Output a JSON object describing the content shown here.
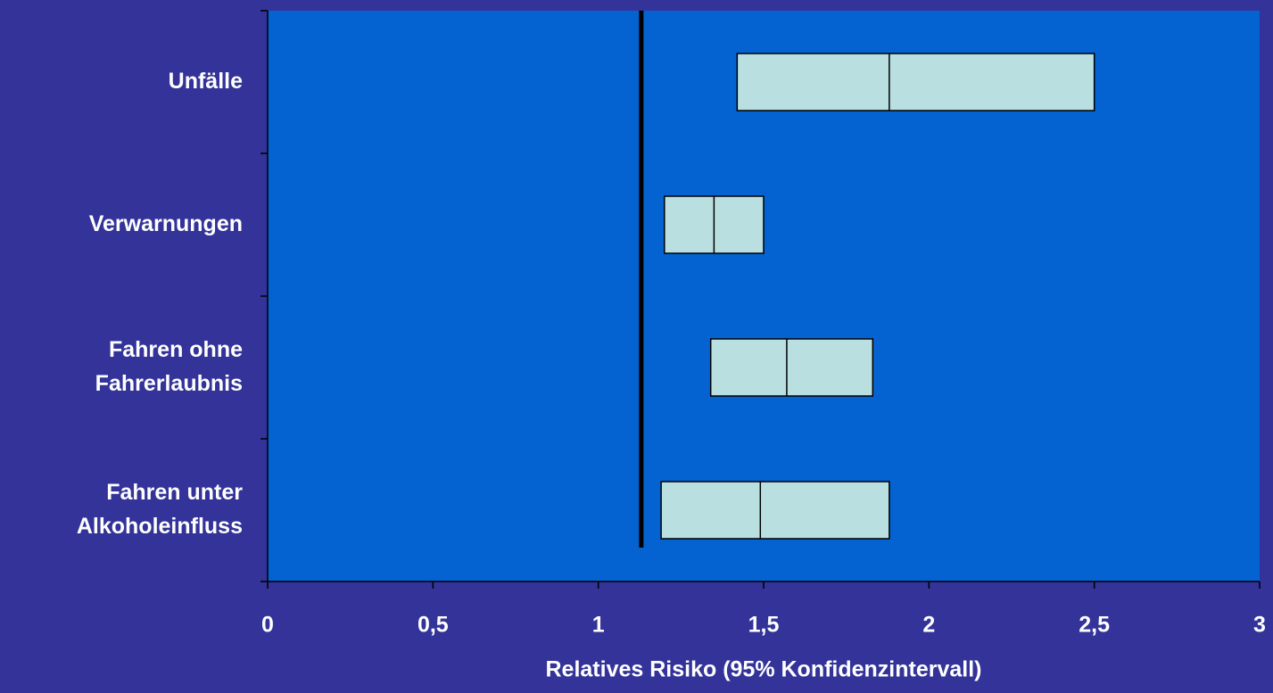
{
  "chart_data": {
    "type": "range",
    "xlabel": "Relatives Risiko (95% Konfidenzintervall)",
    "categories": [
      "Unfälle",
      "Verwarnungen",
      "Fahren ohne\nFahrerlaubnis",
      "Fahren unter\nAlkoholeinfluss"
    ],
    "low": [
      1.42,
      1.2,
      1.34,
      1.19
    ],
    "estimate": [
      1.88,
      1.35,
      1.57,
      1.49
    ],
    "high": [
      2.5,
      1.5,
      1.83,
      1.88
    ],
    "color": "#b9dfe0",
    "reference_line": 1.13,
    "xlim": [
      0,
      3
    ],
    "xticks": [
      0,
      {
        "value": 0.5,
        "label": "0,5"
      },
      1,
      {
        "value": 1.5,
        "label": "1,5"
      },
      2,
      {
        "value": 2.5,
        "label": "2,5"
      },
      3
    ]
  }
}
